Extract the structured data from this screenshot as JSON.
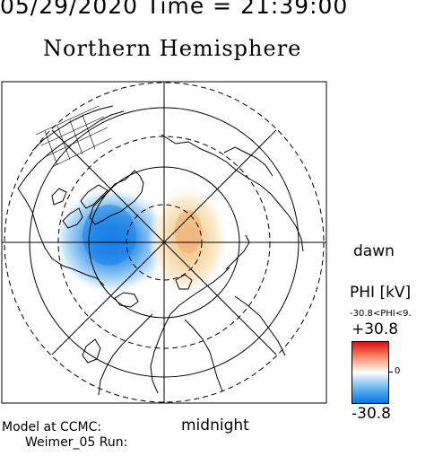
{
  "header": {
    "datetime": "05/29/2020 Time = 21:39:00",
    "title": "Northern Hemisphere"
  },
  "labels": {
    "dawn": "dawn",
    "midnight": "midnight",
    "model": "Model at CCMC:",
    "run": "Weimer_05 Run:"
  },
  "legend": {
    "quantity": "PHI [kV]",
    "range_text": "-30.8<PHI<9.",
    "max": "+30.8",
    "zero": "0",
    "min": "-30.8",
    "colors": {
      "positive": "#d8101a",
      "neutral": "#ffffff",
      "negative": "#0a74e0"
    }
  },
  "map": {
    "projection": "north polar stereographic",
    "potential_cells": [
      {
        "sign": "negative",
        "peak_kv": -30.8,
        "side": "dusk"
      },
      {
        "sign": "positive",
        "peak_kv": 9,
        "side": "dawn"
      }
    ]
  }
}
